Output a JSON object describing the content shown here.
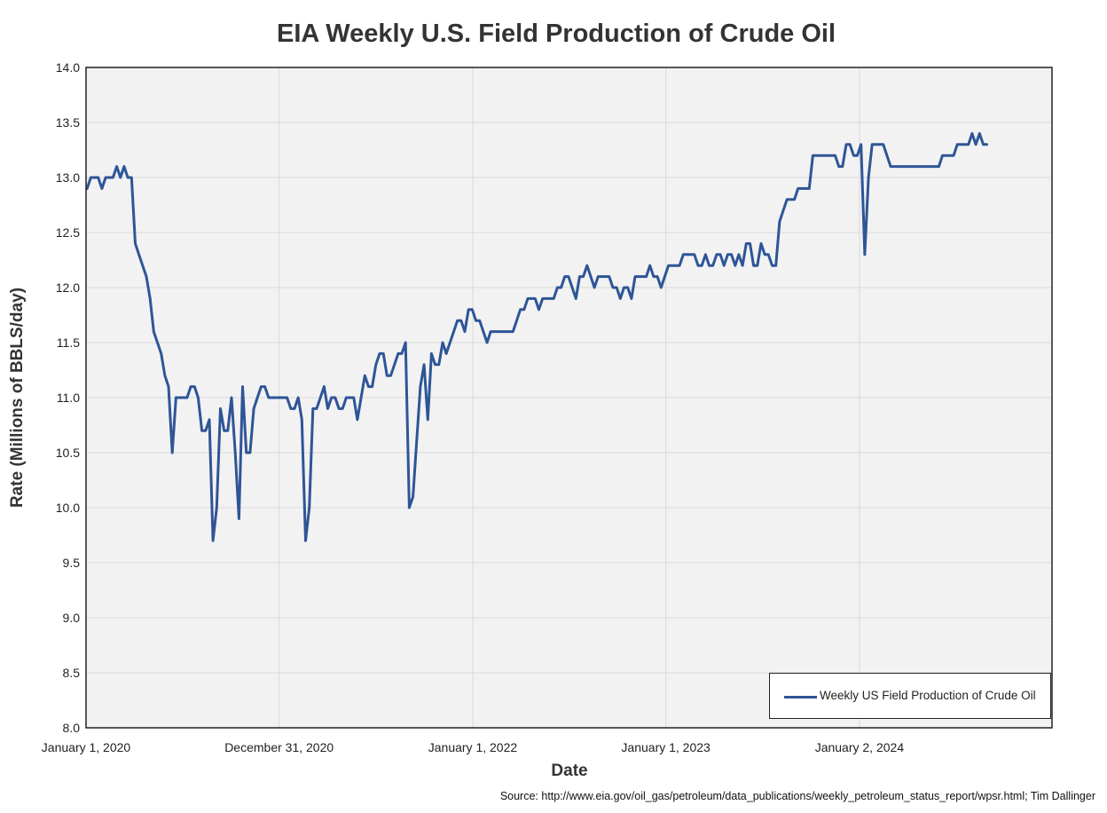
{
  "colors": {
    "series": "#2E5597",
    "plot_bg": "#F2F2F2",
    "grid": "#D9D9D9",
    "frame": "#222222"
  },
  "chart_data": {
    "type": "line",
    "title": "EIA Weekly U.S. Field Production of Crude Oil",
    "xlabel": "Date",
    "ylabel": "Rate (Millions of BBLS/day)",
    "ylim": [
      8.0,
      14.0
    ],
    "xlim": [
      "2020-01-01",
      "2024-12-31"
    ],
    "grid": true,
    "legend_position": "bottom-right",
    "y_ticks": [
      "8.0",
      "8.5",
      "9.0",
      "9.5",
      "10.0",
      "10.5",
      "11.0",
      "11.5",
      "12.0",
      "12.5",
      "13.0",
      "13.5",
      "14.0"
    ],
    "x_ticks": [
      {
        "label": "January 1, 2020",
        "date": "2020-01-01"
      },
      {
        "label": "December 31, 2020",
        "date": "2020-12-31"
      },
      {
        "label": "January 1, 2022",
        "date": "2022-01-01"
      },
      {
        "label": "January 1, 2023",
        "date": "2023-01-01"
      },
      {
        "label": "January 2, 2024",
        "date": "2024-01-02"
      }
    ],
    "series": [
      {
        "name": "Weekly US Field Production of Crude Oil",
        "points": [
          [
            "2020-01-03",
            12.9
          ],
          [
            "2020-01-10",
            13.0
          ],
          [
            "2020-01-17",
            13.0
          ],
          [
            "2020-01-24",
            13.0
          ],
          [
            "2020-01-31",
            12.9
          ],
          [
            "2020-02-07",
            13.0
          ],
          [
            "2020-02-14",
            13.0
          ],
          [
            "2020-02-21",
            13.0
          ],
          [
            "2020-02-28",
            13.1
          ],
          [
            "2020-03-06",
            13.0
          ],
          [
            "2020-03-13",
            13.1
          ],
          [
            "2020-03-20",
            13.0
          ],
          [
            "2020-03-27",
            13.0
          ],
          [
            "2020-04-03",
            12.4
          ],
          [
            "2020-04-10",
            12.3
          ],
          [
            "2020-04-17",
            12.2
          ],
          [
            "2020-04-24",
            12.1
          ],
          [
            "2020-05-01",
            11.9
          ],
          [
            "2020-05-08",
            11.6
          ],
          [
            "2020-05-15",
            11.5
          ],
          [
            "2020-05-22",
            11.4
          ],
          [
            "2020-05-29",
            11.2
          ],
          [
            "2020-06-05",
            11.1
          ],
          [
            "2020-06-12",
            10.5
          ],
          [
            "2020-06-19",
            11.0
          ],
          [
            "2020-06-26",
            11.0
          ],
          [
            "2020-07-03",
            11.0
          ],
          [
            "2020-07-10",
            11.0
          ],
          [
            "2020-07-17",
            11.1
          ],
          [
            "2020-07-24",
            11.1
          ],
          [
            "2020-07-31",
            11.0
          ],
          [
            "2020-08-07",
            10.7
          ],
          [
            "2020-08-14",
            10.7
          ],
          [
            "2020-08-21",
            10.8
          ],
          [
            "2020-08-28",
            9.7
          ],
          [
            "2020-09-04",
            10.0
          ],
          [
            "2020-09-11",
            10.9
          ],
          [
            "2020-09-18",
            10.7
          ],
          [
            "2020-09-25",
            10.7
          ],
          [
            "2020-10-02",
            11.0
          ],
          [
            "2020-10-09",
            10.5
          ],
          [
            "2020-10-16",
            9.9
          ],
          [
            "2020-10-23",
            11.1
          ],
          [
            "2020-10-30",
            10.5
          ],
          [
            "2020-11-06",
            10.5
          ],
          [
            "2020-11-13",
            10.9
          ],
          [
            "2020-11-20",
            11.0
          ],
          [
            "2020-11-27",
            11.1
          ],
          [
            "2020-12-04",
            11.1
          ],
          [
            "2020-12-11",
            11.0
          ],
          [
            "2020-12-18",
            11.0
          ],
          [
            "2020-12-25",
            11.0
          ],
          [
            "2021-01-01",
            11.0
          ],
          [
            "2021-01-08",
            11.0
          ],
          [
            "2021-01-15",
            11.0
          ],
          [
            "2021-01-22",
            10.9
          ],
          [
            "2021-01-29",
            10.9
          ],
          [
            "2021-02-05",
            11.0
          ],
          [
            "2021-02-12",
            10.8
          ],
          [
            "2021-02-19",
            9.7
          ],
          [
            "2021-02-26",
            10.0
          ],
          [
            "2021-03-05",
            10.9
          ],
          [
            "2021-03-12",
            10.9
          ],
          [
            "2021-03-19",
            11.0
          ],
          [
            "2021-03-26",
            11.1
          ],
          [
            "2021-04-02",
            10.9
          ],
          [
            "2021-04-09",
            11.0
          ],
          [
            "2021-04-16",
            11.0
          ],
          [
            "2021-04-23",
            10.9
          ],
          [
            "2021-04-30",
            10.9
          ],
          [
            "2021-05-07",
            11.0
          ],
          [
            "2021-05-14",
            11.0
          ],
          [
            "2021-05-21",
            11.0
          ],
          [
            "2021-05-28",
            10.8
          ],
          [
            "2021-06-04",
            11.0
          ],
          [
            "2021-06-11",
            11.2
          ],
          [
            "2021-06-18",
            11.1
          ],
          [
            "2021-06-25",
            11.1
          ],
          [
            "2021-07-02",
            11.3
          ],
          [
            "2021-07-09",
            11.4
          ],
          [
            "2021-07-16",
            11.4
          ],
          [
            "2021-07-23",
            11.2
          ],
          [
            "2021-07-30",
            11.2
          ],
          [
            "2021-08-06",
            11.3
          ],
          [
            "2021-08-13",
            11.4
          ],
          [
            "2021-08-20",
            11.4
          ],
          [
            "2021-08-27",
            11.5
          ],
          [
            "2021-09-03",
            10.0
          ],
          [
            "2021-09-10",
            10.1
          ],
          [
            "2021-09-17",
            10.6
          ],
          [
            "2021-09-24",
            11.1
          ],
          [
            "2021-10-01",
            11.3
          ],
          [
            "2021-10-08",
            10.8
          ],
          [
            "2021-10-15",
            11.4
          ],
          [
            "2021-10-22",
            11.3
          ],
          [
            "2021-10-29",
            11.3
          ],
          [
            "2021-11-05",
            11.5
          ],
          [
            "2021-11-12",
            11.4
          ],
          [
            "2021-11-19",
            11.5
          ],
          [
            "2021-11-26",
            11.6
          ],
          [
            "2021-12-03",
            11.7
          ],
          [
            "2021-12-10",
            11.7
          ],
          [
            "2021-12-17",
            11.6
          ],
          [
            "2021-12-24",
            11.8
          ],
          [
            "2021-12-31",
            11.8
          ],
          [
            "2022-01-07",
            11.7
          ],
          [
            "2022-01-14",
            11.7
          ],
          [
            "2022-01-21",
            11.6
          ],
          [
            "2022-01-28",
            11.5
          ],
          [
            "2022-02-04",
            11.6
          ],
          [
            "2022-02-11",
            11.6
          ],
          [
            "2022-02-18",
            11.6
          ],
          [
            "2022-02-25",
            11.6
          ],
          [
            "2022-03-04",
            11.6
          ],
          [
            "2022-03-11",
            11.6
          ],
          [
            "2022-03-18",
            11.6
          ],
          [
            "2022-03-25",
            11.7
          ],
          [
            "2022-04-01",
            11.8
          ],
          [
            "2022-04-08",
            11.8
          ],
          [
            "2022-04-15",
            11.9
          ],
          [
            "2022-04-22",
            11.9
          ],
          [
            "2022-04-29",
            11.9
          ],
          [
            "2022-05-06",
            11.8
          ],
          [
            "2022-05-13",
            11.9
          ],
          [
            "2022-05-20",
            11.9
          ],
          [
            "2022-05-27",
            11.9
          ],
          [
            "2022-06-03",
            11.9
          ],
          [
            "2022-06-10",
            12.0
          ],
          [
            "2022-06-17",
            12.0
          ],
          [
            "2022-06-24",
            12.1
          ],
          [
            "2022-07-01",
            12.1
          ],
          [
            "2022-07-08",
            12.0
          ],
          [
            "2022-07-15",
            11.9
          ],
          [
            "2022-07-22",
            12.1
          ],
          [
            "2022-07-29",
            12.1
          ],
          [
            "2022-08-05",
            12.2
          ],
          [
            "2022-08-12",
            12.1
          ],
          [
            "2022-08-19",
            12.0
          ],
          [
            "2022-08-26",
            12.1
          ],
          [
            "2022-09-02",
            12.1
          ],
          [
            "2022-09-09",
            12.1
          ],
          [
            "2022-09-16",
            12.1
          ],
          [
            "2022-09-23",
            12.0
          ],
          [
            "2022-09-30",
            12.0
          ],
          [
            "2022-10-07",
            11.9
          ],
          [
            "2022-10-14",
            12.0
          ],
          [
            "2022-10-21",
            12.0
          ],
          [
            "2022-10-28",
            11.9
          ],
          [
            "2022-11-04",
            12.1
          ],
          [
            "2022-11-11",
            12.1
          ],
          [
            "2022-11-18",
            12.1
          ],
          [
            "2022-11-25",
            12.1
          ],
          [
            "2022-12-02",
            12.2
          ],
          [
            "2022-12-09",
            12.1
          ],
          [
            "2022-12-16",
            12.1
          ],
          [
            "2022-12-23",
            12.0
          ],
          [
            "2022-12-30",
            12.1
          ],
          [
            "2023-01-06",
            12.2
          ],
          [
            "2023-01-13",
            12.2
          ],
          [
            "2023-01-20",
            12.2
          ],
          [
            "2023-01-27",
            12.2
          ],
          [
            "2023-02-03",
            12.3
          ],
          [
            "2023-02-10",
            12.3
          ],
          [
            "2023-02-17",
            12.3
          ],
          [
            "2023-02-24",
            12.3
          ],
          [
            "2023-03-03",
            12.2
          ],
          [
            "2023-03-10",
            12.2
          ],
          [
            "2023-03-17",
            12.3
          ],
          [
            "2023-03-24",
            12.2
          ],
          [
            "2023-03-31",
            12.2
          ],
          [
            "2023-04-07",
            12.3
          ],
          [
            "2023-04-14",
            12.3
          ],
          [
            "2023-04-21",
            12.2
          ],
          [
            "2023-04-28",
            12.3
          ],
          [
            "2023-05-05",
            12.3
          ],
          [
            "2023-05-12",
            12.2
          ],
          [
            "2023-05-19",
            12.3
          ],
          [
            "2023-05-26",
            12.2
          ],
          [
            "2023-06-02",
            12.4
          ],
          [
            "2023-06-09",
            12.4
          ],
          [
            "2023-06-16",
            12.2
          ],
          [
            "2023-06-23",
            12.2
          ],
          [
            "2023-06-30",
            12.4
          ],
          [
            "2023-07-07",
            12.3
          ],
          [
            "2023-07-14",
            12.3
          ],
          [
            "2023-07-21",
            12.2
          ],
          [
            "2023-07-28",
            12.2
          ],
          [
            "2023-08-04",
            12.6
          ],
          [
            "2023-08-11",
            12.7
          ],
          [
            "2023-08-18",
            12.8
          ],
          [
            "2023-08-25",
            12.8
          ],
          [
            "2023-09-01",
            12.8
          ],
          [
            "2023-09-08",
            12.9
          ],
          [
            "2023-09-15",
            12.9
          ],
          [
            "2023-09-22",
            12.9
          ],
          [
            "2023-09-29",
            12.9
          ],
          [
            "2023-10-06",
            13.2
          ],
          [
            "2023-10-13",
            13.2
          ],
          [
            "2023-10-20",
            13.2
          ],
          [
            "2023-10-27",
            13.2
          ],
          [
            "2023-11-03",
            13.2
          ],
          [
            "2023-11-10",
            13.2
          ],
          [
            "2023-11-17",
            13.2
          ],
          [
            "2023-11-24",
            13.1
          ],
          [
            "2023-12-01",
            13.1
          ],
          [
            "2023-12-08",
            13.3
          ],
          [
            "2023-12-15",
            13.3
          ],
          [
            "2023-12-22",
            13.2
          ],
          [
            "2023-12-29",
            13.2
          ],
          [
            "2024-01-05",
            13.3
          ],
          [
            "2024-01-12",
            12.3
          ],
          [
            "2024-01-19",
            13.0
          ],
          [
            "2024-01-26",
            13.3
          ],
          [
            "2024-02-02",
            13.3
          ],
          [
            "2024-02-09",
            13.3
          ],
          [
            "2024-02-16",
            13.3
          ],
          [
            "2024-02-23",
            13.2
          ],
          [
            "2024-03-01",
            13.1
          ],
          [
            "2024-03-08",
            13.1
          ],
          [
            "2024-03-15",
            13.1
          ],
          [
            "2024-03-22",
            13.1
          ],
          [
            "2024-03-29",
            13.1
          ],
          [
            "2024-04-05",
            13.1
          ],
          [
            "2024-04-12",
            13.1
          ],
          [
            "2024-04-19",
            13.1
          ],
          [
            "2024-04-26",
            13.1
          ],
          [
            "2024-05-03",
            13.1
          ],
          [
            "2024-05-10",
            13.1
          ],
          [
            "2024-05-17",
            13.1
          ],
          [
            "2024-05-24",
            13.1
          ],
          [
            "2024-05-31",
            13.1
          ],
          [
            "2024-06-07",
            13.2
          ],
          [
            "2024-06-14",
            13.2
          ],
          [
            "2024-06-21",
            13.2
          ],
          [
            "2024-06-28",
            13.2
          ],
          [
            "2024-07-05",
            13.3
          ],
          [
            "2024-07-12",
            13.3
          ],
          [
            "2024-07-19",
            13.3
          ],
          [
            "2024-07-26",
            13.3
          ],
          [
            "2024-08-02",
            13.4
          ],
          [
            "2024-08-09",
            13.3
          ],
          [
            "2024-08-16",
            13.4
          ],
          [
            "2024-08-23",
            13.3
          ],
          [
            "2024-08-30",
            13.3
          ]
        ]
      }
    ],
    "source": "Source: http://www.eia.gov/oil_gas/petroleum/data_publications/weekly_petroleum_status_report/wpsr.html; Tim Dallinger"
  }
}
